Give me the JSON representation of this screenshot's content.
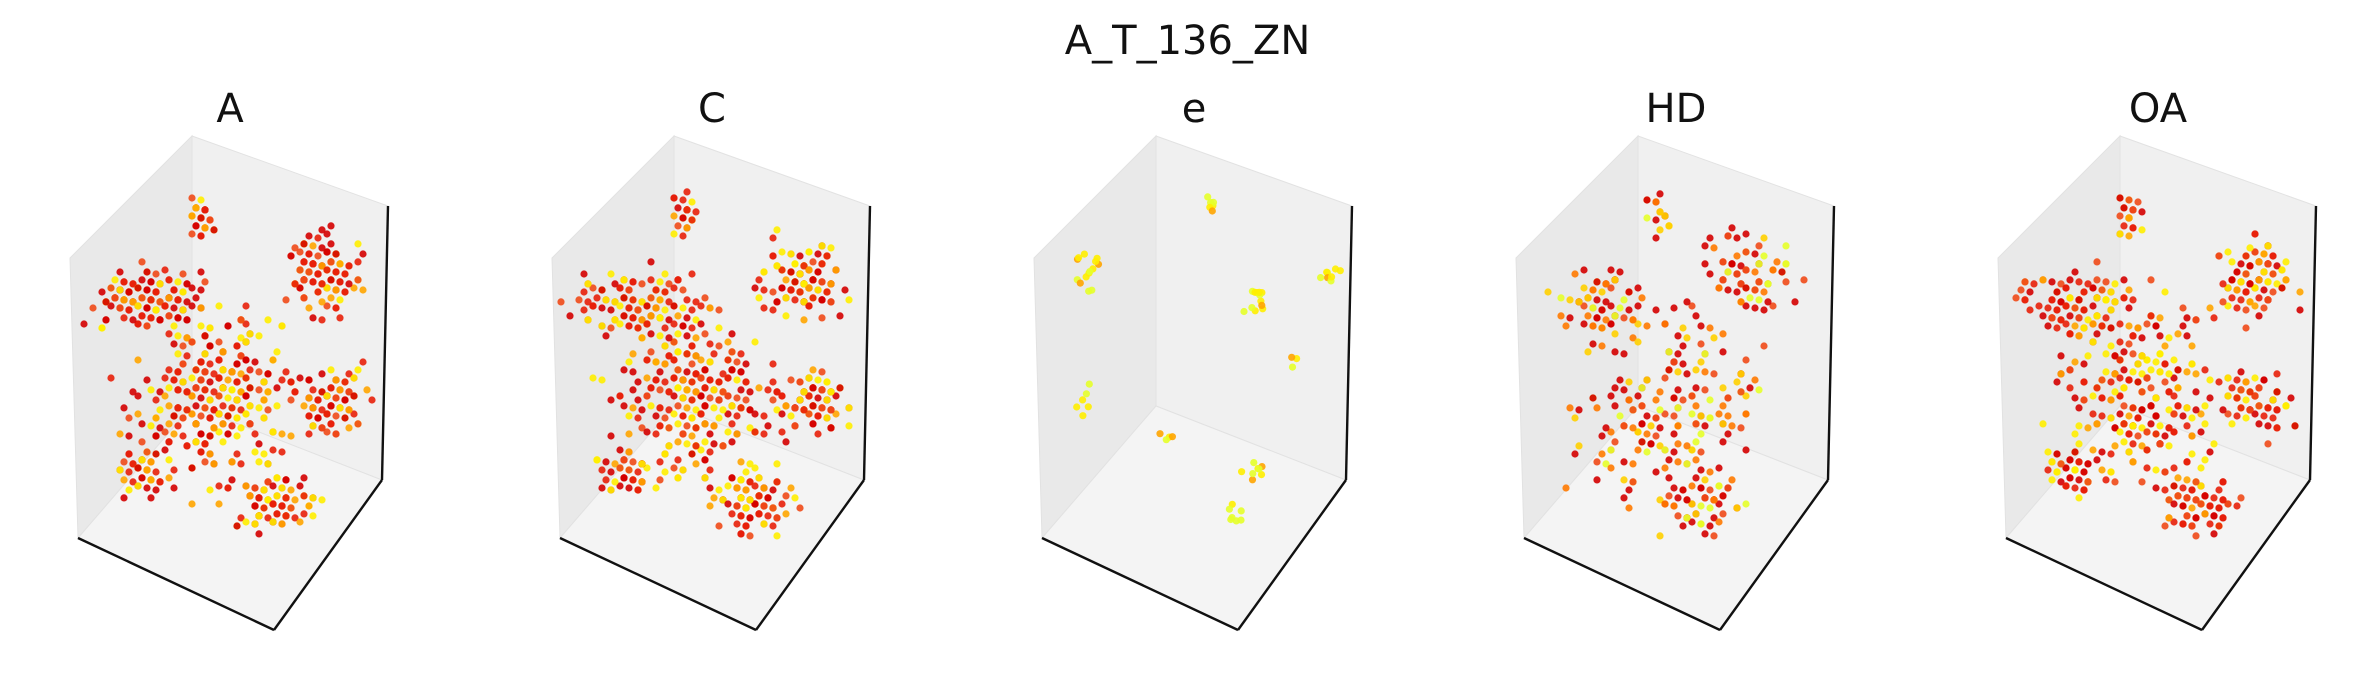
{
  "figure": {
    "title": "A_T_136_ZN"
  },
  "colors": {
    "pane_back": "#f0f0f0",
    "pane_side": "#e9e9e9",
    "pane_floor": "#f4f4f4",
    "axis_line": "#111111",
    "point_palette": [
      "#d40000",
      "#e8200a",
      "#f04a18",
      "#ff7a00",
      "#ffa500",
      "#ffd000",
      "#ffee00",
      "#e6ff2a"
    ]
  },
  "chart_data": [
    {
      "type": "scatter3d",
      "title": "A",
      "grid": false,
      "axes_ticks": false,
      "point_count_estimate": 900,
      "distribution": "dense",
      "color_mix": "red-orange-yellow"
    },
    {
      "type": "scatter3d",
      "title": "C",
      "grid": false,
      "axes_ticks": false,
      "point_count_estimate": 850,
      "distribution": "dense",
      "color_mix": "red-orange-yellow"
    },
    {
      "type": "scatter3d",
      "title": "e",
      "grid": false,
      "axes_ticks": false,
      "point_count_estimate": 70,
      "distribution": "clusters",
      "color_mix": "yellow-green"
    },
    {
      "type": "scatter3d",
      "title": "HD",
      "grid": false,
      "axes_ticks": false,
      "point_count_estimate": 420,
      "distribution": "sparse",
      "color_mix": "red-orange-yellow"
    },
    {
      "type": "scatter3d",
      "title": "OA",
      "grid": false,
      "axes_ticks": false,
      "point_count_estimate": 700,
      "distribution": "dense",
      "color_mix": "red-orange-yellow"
    }
  ]
}
